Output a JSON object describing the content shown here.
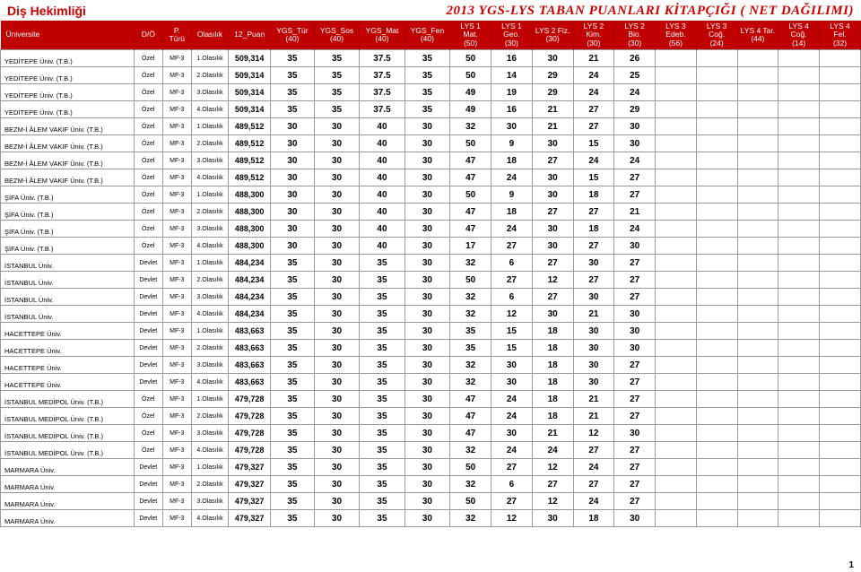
{
  "header": {
    "dept": "Diş Hekimliği",
    "title": "2013 YGS-LYS TABAN PUANLARI KİTAPÇIĞI ( NET DAĞILIMI)"
  },
  "columns": [
    "Üniversite",
    "D/Ö",
    "P. Türü",
    "Olasılık",
    "12_Puan",
    "YGS_Tür (40)",
    "YGS_Sos (40)",
    "YGS_Mat (40)",
    "YGS_Fen (40)",
    "LYS 1 Mat. (50)",
    "LYS 1 Geo. (30)",
    "LYS 2 Fiz. (30)",
    "LYS 2 Kim. (30)",
    "LYS 2 Bio. (30)",
    "LYS 3 Edeb. (56)",
    "LYS 3 Coğ. (24)",
    "LYS 4 Tar. (44)",
    "LYS 4 Coğ. (14)",
    "LYS 4 Fel. (32)"
  ],
  "rows": [
    {
      "u": "YEDİTEPE Üniv. (T.B.)",
      "d": "Özel",
      "p": "MF-3",
      "o": "1.Olasılık",
      "puan": "509,314",
      "v": [
        "35",
        "35",
        "37.5",
        "35",
        "50",
        "16",
        "30",
        "21",
        "26",
        "",
        "",
        "",
        "",
        ""
      ]
    },
    {
      "u": "YEDİTEPE Üniv. (T.B.)",
      "d": "Özel",
      "p": "MF-3",
      "o": "2.Olasılık",
      "puan": "509,314",
      "v": [
        "35",
        "35",
        "37.5",
        "35",
        "50",
        "14",
        "29",
        "24",
        "25",
        "",
        "",
        "",
        "",
        ""
      ]
    },
    {
      "u": "YEDİTEPE Üniv. (T.B.)",
      "d": "Özel",
      "p": "MF-3",
      "o": "3.Olasılık",
      "puan": "509,314",
      "v": [
        "35",
        "35",
        "37.5",
        "35",
        "49",
        "19",
        "29",
        "24",
        "24",
        "",
        "",
        "",
        "",
        ""
      ]
    },
    {
      "u": "YEDİTEPE Üniv. (T.B.)",
      "d": "Özel",
      "p": "MF-3",
      "o": "4.Olasılık",
      "puan": "509,314",
      "v": [
        "35",
        "35",
        "37.5",
        "35",
        "49",
        "16",
        "21",
        "27",
        "29",
        "",
        "",
        "",
        "",
        ""
      ]
    },
    {
      "u": "BEZM-İ ÂLEM VAKIF Üniv. (T.B.)",
      "d": "Özel",
      "p": "MF-3",
      "o": "1.Olasılık",
      "puan": "489,512",
      "v": [
        "30",
        "30",
        "40",
        "30",
        "32",
        "30",
        "21",
        "27",
        "30",
        "",
        "",
        "",
        "",
        ""
      ]
    },
    {
      "u": "BEZM-İ ÂLEM VAKIF Üniv. (T.B.)",
      "d": "Özel",
      "p": "MF-3",
      "o": "2.Olasılık",
      "puan": "489,512",
      "v": [
        "30",
        "30",
        "40",
        "30",
        "50",
        "9",
        "30",
        "15",
        "30",
        "",
        "",
        "",
        "",
        ""
      ]
    },
    {
      "u": "BEZM-İ ÂLEM VAKIF Üniv. (T.B.)",
      "d": "Özel",
      "p": "MF-3",
      "o": "3.Olasılık",
      "puan": "489,512",
      "v": [
        "30",
        "30",
        "40",
        "30",
        "47",
        "18",
        "27",
        "24",
        "24",
        "",
        "",
        "",
        "",
        ""
      ]
    },
    {
      "u": "BEZM-İ ÂLEM VAKIF Üniv. (T.B.)",
      "d": "Özel",
      "p": "MF-3",
      "o": "4.Olasılık",
      "puan": "489,512",
      "v": [
        "30",
        "30",
        "40",
        "30",
        "47",
        "24",
        "30",
        "15",
        "27",
        "",
        "",
        "",
        "",
        ""
      ]
    },
    {
      "u": "ŞİFA Üniv. (T.B.)",
      "d": "Özel",
      "p": "MF-3",
      "o": "1.Olasılık",
      "puan": "488,300",
      "v": [
        "30",
        "30",
        "40",
        "30",
        "50",
        "9",
        "30",
        "18",
        "27",
        "",
        "",
        "",
        "",
        ""
      ]
    },
    {
      "u": "ŞİFA Üniv. (T.B.)",
      "d": "Özel",
      "p": "MF-3",
      "o": "2.Olasılık",
      "puan": "488,300",
      "v": [
        "30",
        "30",
        "40",
        "30",
        "47",
        "18",
        "27",
        "27",
        "21",
        "",
        "",
        "",
        "",
        ""
      ]
    },
    {
      "u": "ŞİFA Üniv. (T.B.)",
      "d": "Özel",
      "p": "MF-3",
      "o": "3.Olasılık",
      "puan": "488,300",
      "v": [
        "30",
        "30",
        "40",
        "30",
        "47",
        "24",
        "30",
        "18",
        "24",
        "",
        "",
        "",
        "",
        ""
      ]
    },
    {
      "u": "ŞİFA Üniv. (T.B.)",
      "d": "Özel",
      "p": "MF-3",
      "o": "4.Olasılık",
      "puan": "488,300",
      "v": [
        "30",
        "30",
        "40",
        "30",
        "17",
        "27",
        "30",
        "27",
        "30",
        "",
        "",
        "",
        "",
        ""
      ]
    },
    {
      "u": "İSTANBUL Üniv.",
      "d": "Devlet",
      "p": "MF-3",
      "o": "1.Olasılık",
      "puan": "484,234",
      "v": [
        "35",
        "30",
        "35",
        "30",
        "32",
        "6",
        "27",
        "30",
        "27",
        "",
        "",
        "",
        "",
        ""
      ]
    },
    {
      "u": "İSTANBUL Üniv.",
      "d": "Devlet",
      "p": "MF-3",
      "o": "2.Olasılık",
      "puan": "484,234",
      "v": [
        "35",
        "30",
        "35",
        "30",
        "50",
        "27",
        "12",
        "27",
        "27",
        "",
        "",
        "",
        "",
        ""
      ]
    },
    {
      "u": "İSTANBUL Üniv.",
      "d": "Devlet",
      "p": "MF-3",
      "o": "3.Olasılık",
      "puan": "484,234",
      "v": [
        "35",
        "30",
        "35",
        "30",
        "32",
        "6",
        "27",
        "30",
        "27",
        "",
        "",
        "",
        "",
        ""
      ]
    },
    {
      "u": "İSTANBUL Üniv.",
      "d": "Devlet",
      "p": "MF-3",
      "o": "4.Olasılık",
      "puan": "484,234",
      "v": [
        "35",
        "30",
        "35",
        "30",
        "32",
        "12",
        "30",
        "21",
        "30",
        "",
        "",
        "",
        "",
        ""
      ]
    },
    {
      "u": "HACETTEPE Üniv.",
      "d": "Devlet",
      "p": "MF-3",
      "o": "1.Olasılık",
      "puan": "483,663",
      "v": [
        "35",
        "30",
        "35",
        "30",
        "35",
        "15",
        "18",
        "30",
        "30",
        "",
        "",
        "",
        "",
        ""
      ]
    },
    {
      "u": "HACETTEPE Üniv.",
      "d": "Devlet",
      "p": "MF-3",
      "o": "2.Olasılık",
      "puan": "483,663",
      "v": [
        "35",
        "30",
        "35",
        "30",
        "35",
        "15",
        "18",
        "30",
        "30",
        "",
        "",
        "",
        "",
        ""
      ]
    },
    {
      "u": "HACETTEPE Üniv.",
      "d": "Devlet",
      "p": "MF-3",
      "o": "3.Olasılık",
      "puan": "483,663",
      "v": [
        "35",
        "30",
        "35",
        "30",
        "32",
        "30",
        "18",
        "30",
        "27",
        "",
        "",
        "",
        "",
        ""
      ]
    },
    {
      "u": "HACETTEPE Üniv.",
      "d": "Devlet",
      "p": "MF-3",
      "o": "4.Olasılık",
      "puan": "483,663",
      "v": [
        "35",
        "30",
        "35",
        "30",
        "32",
        "30",
        "18",
        "30",
        "27",
        "",
        "",
        "",
        "",
        ""
      ]
    },
    {
      "u": "İSTANBUL MEDİPOL Üniv. (T.B.)",
      "d": "Özel",
      "p": "MF-3",
      "o": "1.Olasılık",
      "puan": "479,728",
      "v": [
        "35",
        "30",
        "35",
        "30",
        "47",
        "24",
        "18",
        "21",
        "27",
        "",
        "",
        "",
        "",
        ""
      ]
    },
    {
      "u": "İSTANBUL MEDİPOL Üniv. (T.B.)",
      "d": "Özel",
      "p": "MF-3",
      "o": "2.Olasılık",
      "puan": "479,728",
      "v": [
        "35",
        "30",
        "35",
        "30",
        "47",
        "24",
        "18",
        "21",
        "27",
        "",
        "",
        "",
        "",
        ""
      ]
    },
    {
      "u": "İSTANBUL MEDİPOL Üniv. (T.B.)",
      "d": "Özel",
      "p": "MF-3",
      "o": "3.Olasılık",
      "puan": "479,728",
      "v": [
        "35",
        "30",
        "35",
        "30",
        "47",
        "30",
        "21",
        "12",
        "30",
        "",
        "",
        "",
        "",
        ""
      ]
    },
    {
      "u": "İSTANBUL MEDİPOL Üniv. (T.B.)",
      "d": "Özel",
      "p": "MF-3",
      "o": "4.Olasılık",
      "puan": "479,728",
      "v": [
        "35",
        "30",
        "35",
        "30",
        "32",
        "24",
        "24",
        "27",
        "27",
        "",
        "",
        "",
        "",
        ""
      ]
    },
    {
      "u": "MARMARA Üniv.",
      "d": "Devlet",
      "p": "MF-3",
      "o": "1.Olasılık",
      "puan": "479,327",
      "v": [
        "35",
        "30",
        "35",
        "30",
        "50",
        "27",
        "12",
        "24",
        "27",
        "",
        "",
        "",
        "",
        ""
      ]
    },
    {
      "u": "MARMARA Üniv.",
      "d": "Devlet",
      "p": "MF-3",
      "o": "2.Olasılık",
      "puan": "479,327",
      "v": [
        "35",
        "30",
        "35",
        "30",
        "32",
        "6",
        "27",
        "27",
        "27",
        "",
        "",
        "",
        "",
        ""
      ]
    },
    {
      "u": "MARMARA Üniv.",
      "d": "Devlet",
      "p": "MF-3",
      "o": "3.Olasılık",
      "puan": "479,327",
      "v": [
        "35",
        "30",
        "35",
        "30",
        "50",
        "27",
        "12",
        "24",
        "27",
        "",
        "",
        "",
        "",
        ""
      ]
    },
    {
      "u": "MARMARA Üniv.",
      "d": "Devlet",
      "p": "MF-3",
      "o": "4.Olasılık",
      "puan": "479,327",
      "v": [
        "35",
        "30",
        "35",
        "30",
        "32",
        "12",
        "30",
        "18",
        "30",
        "",
        "",
        "",
        "",
        ""
      ]
    }
  ],
  "pageNum": "1"
}
